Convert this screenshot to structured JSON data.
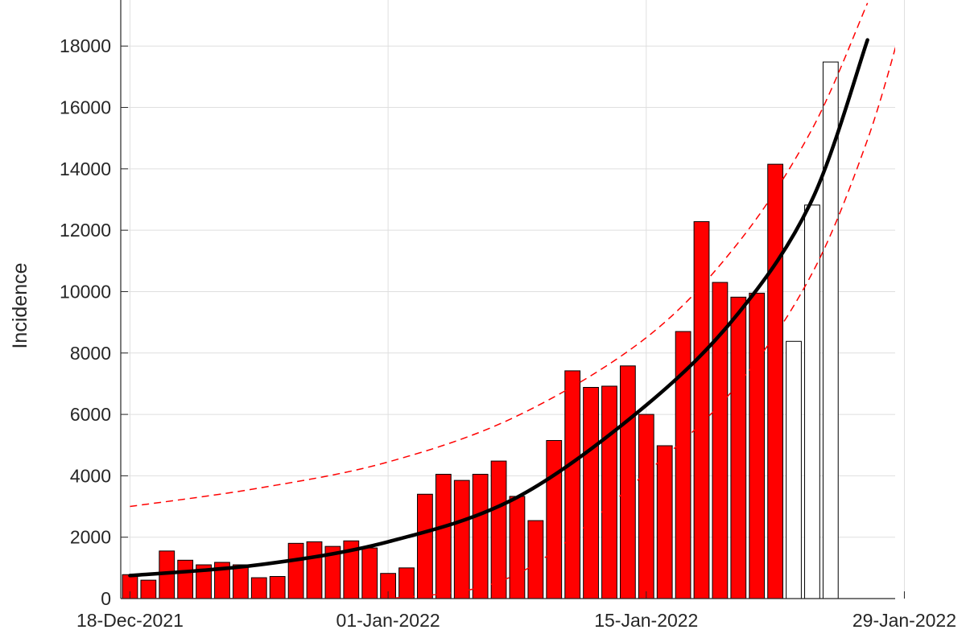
{
  "chart_data": {
    "type": "bar",
    "ylabel": "Incidence",
    "xlabel": "",
    "ylim": [
      0,
      19500
    ],
    "xlim": [
      "2021-12-18",
      "2022-01-29"
    ],
    "grid": true,
    "x_tick_labels": [
      "18-Dec-2021",
      "01-Jan-2022",
      "15-Jan-2022",
      "29-Jan-2022"
    ],
    "x_ticks": [
      "2021-12-18",
      "2022-01-01",
      "2022-01-15",
      "2022-01-29"
    ],
    "y_ticks": [
      0,
      2000,
      4000,
      6000,
      8000,
      10000,
      12000,
      14000,
      16000,
      18000
    ],
    "bar_dates": [
      "2021-12-18",
      "2021-12-19",
      "2021-12-20",
      "2021-12-21",
      "2021-12-22",
      "2021-12-23",
      "2021-12-24",
      "2021-12-25",
      "2021-12-26",
      "2021-12-27",
      "2021-12-28",
      "2021-12-29",
      "2021-12-30",
      "2021-12-31",
      "2022-01-01",
      "2022-01-02",
      "2022-01-03",
      "2022-01-04",
      "2022-01-05",
      "2022-01-06",
      "2022-01-07",
      "2022-01-08",
      "2022-01-09",
      "2022-01-10",
      "2022-01-11",
      "2022-01-12",
      "2022-01-13",
      "2022-01-14",
      "2022-01-15",
      "2022-01-16",
      "2022-01-17",
      "2022-01-18",
      "2022-01-19",
      "2022-01-20",
      "2022-01-21",
      "2022-01-22",
      "2022-01-23",
      "2022-01-24",
      "2022-01-25",
      "2022-01-26"
    ],
    "series": [
      {
        "role": "observed",
        "color": "#ff0000",
        "values": [
          780,
          600,
          1550,
          1250,
          1100,
          1180,
          1100,
          680,
          720,
          1800,
          1850,
          1700,
          1880,
          1650,
          820,
          1000,
          3400,
          4050,
          3850,
          4050,
          4480,
          3330,
          2540,
          5150,
          7420,
          6880,
          6920,
          7580,
          6000,
          4980,
          8700,
          12280,
          10300,
          9820,
          9950,
          14150
        ]
      },
      {
        "role": "projected",
        "color": "#ffffff",
        "values": [
          null,
          null,
          null,
          null,
          null,
          null,
          null,
          null,
          null,
          null,
          null,
          null,
          null,
          null,
          null,
          null,
          null,
          null,
          null,
          null,
          null,
          null,
          null,
          null,
          null,
          null,
          null,
          null,
          null,
          null,
          null,
          null,
          null,
          null,
          null,
          null,
          8380,
          12820,
          17480
        ]
      },
      {
        "role": "fit",
        "color": "#000000",
        "x": [
          "2021-12-18",
          "2021-12-25",
          "2022-01-01",
          "2022-01-08",
          "2022-01-15",
          "2022-01-20",
          "2022-01-24",
          "2022-01-27"
        ],
        "values": [
          750,
          1100,
          1850,
          3300,
          6300,
          9300,
          13000,
          18200
        ]
      },
      {
        "role": "fit-upper-bound",
        "color": "#ff0000",
        "x": [
          "2021-12-18",
          "2021-12-25",
          "2022-01-01",
          "2022-01-08",
          "2022-01-15",
          "2022-01-20",
          "2022-01-24",
          "2022-01-27"
        ],
        "values": [
          3000,
          3600,
          4450,
          5950,
          8500,
          11600,
          15300,
          19400
        ]
      },
      {
        "role": "fit-lower-bound",
        "color": "#ff0000",
        "x": [
          "2021-12-18",
          "2021-12-25",
          "2022-01-01",
          "2022-01-08",
          "2022-01-15",
          "2022-01-20",
          "2022-01-24",
          "2022-01-27",
          "2022-01-29"
        ],
        "values": [
          0,
          0,
          0,
          800,
          4100,
          7000,
          10600,
          14950,
          19000
        ]
      }
    ]
  }
}
